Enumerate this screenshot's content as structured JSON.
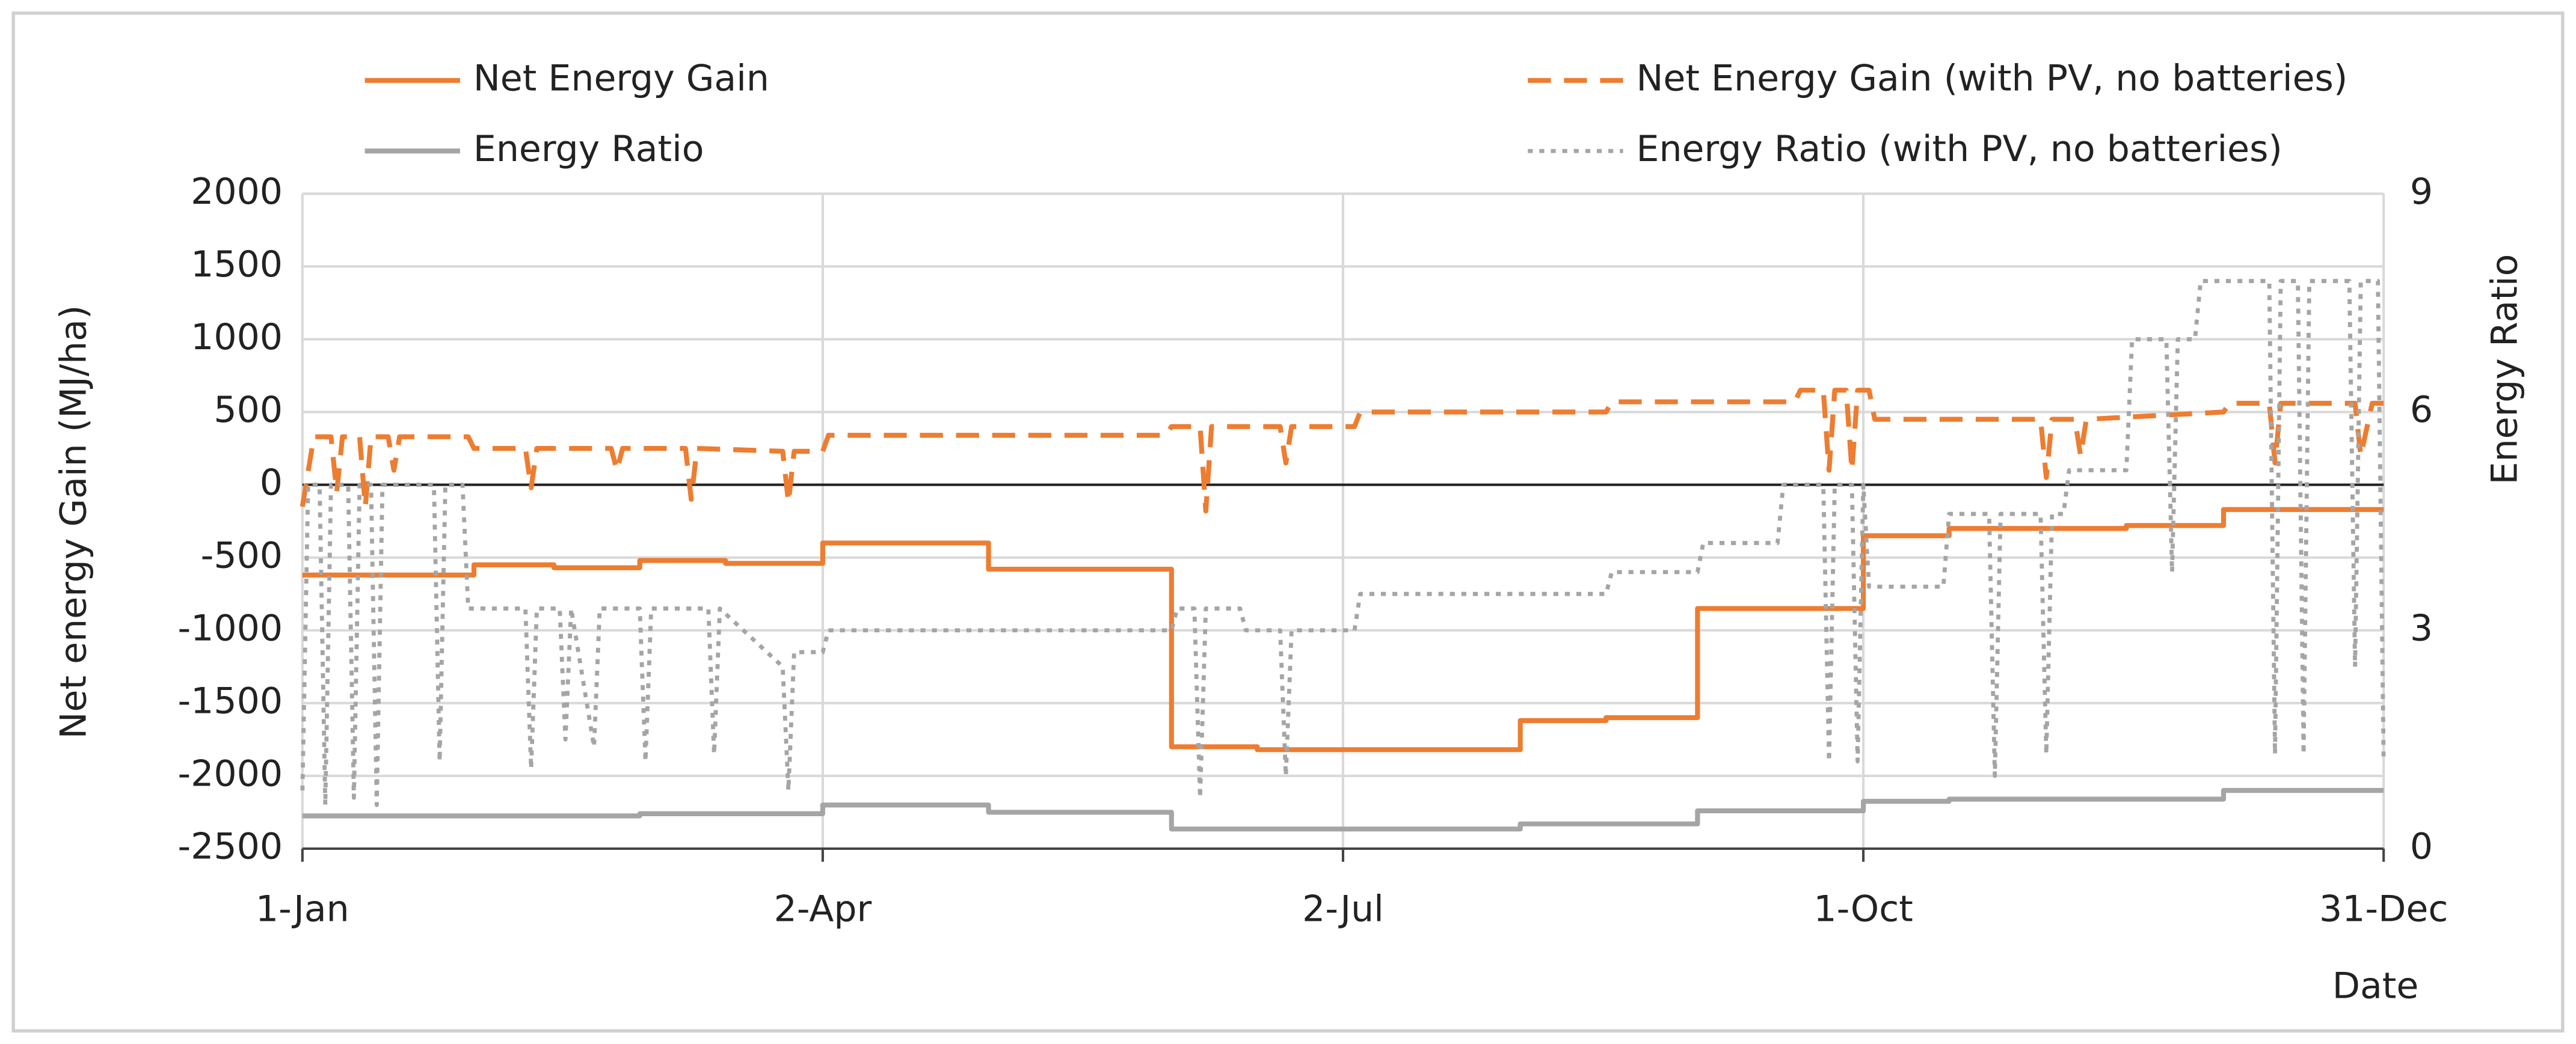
{
  "chart_data": {
    "type": "line",
    "y_label": "Net energy Gain (MJ/ha)",
    "y2_label": "Energy Ratio",
    "x_label": "Date",
    "xlim": [
      1,
      365
    ],
    "xticks": [
      {
        "value": 1,
        "label": "1-Jan"
      },
      {
        "value": 92,
        "label": "2-Apr"
      },
      {
        "value": 183,
        "label": "2-Jul"
      },
      {
        "value": 274,
        "label": "1-Oct"
      },
      {
        "value": 365,
        "label": "31-Dec"
      }
    ],
    "ylim": [
      -2500,
      2000
    ],
    "yticks": [
      -2500,
      -2000,
      -1500,
      -1000,
      -500,
      0,
      500,
      1000,
      1500,
      2000
    ],
    "y2lim": [
      0,
      9
    ],
    "y2ticks": [
      0,
      3,
      6,
      9
    ],
    "grid": true,
    "legend": "top",
    "series": [
      {
        "name": "Net Energy Gain",
        "color": "#ed7d31",
        "dash": "solid",
        "axis": "y",
        "x": [
          1,
          31,
          31,
          45,
          45,
          60,
          60,
          75,
          75,
          92,
          92,
          121,
          121,
          153,
          153,
          168,
          168,
          214,
          214,
          229,
          229,
          245,
          245,
          274,
          274,
          289,
          289,
          320,
          320,
          337,
          337,
          365
        ],
        "values": [
          -620,
          -620,
          -550,
          -550,
          -570,
          -570,
          -520,
          -520,
          -540,
          -540,
          -400,
          -400,
          -580,
          -580,
          -1800,
          -1800,
          -1820,
          -1820,
          -1620,
          -1620,
          -1600,
          -1600,
          -850,
          -850,
          -350,
          -350,
          -300,
          -300,
          -280,
          -280,
          -170,
          -170
        ]
      },
      {
        "name": "Net Energy Gain (with PV, no batteries)",
        "color": "#ed7d31",
        "dash": "dashed",
        "axis": "y",
        "x": [
          1,
          3,
          6,
          7,
          8,
          11,
          12,
          13,
          16,
          17,
          18,
          30,
          31,
          40,
          41,
          42,
          55,
          56,
          57,
          68,
          69,
          70,
          85,
          86,
          87,
          92,
          93,
          152,
          153,
          158,
          159,
          160,
          172,
          173,
          174,
          185,
          186,
          229,
          230,
          262,
          263,
          267,
          268,
          269,
          271,
          272,
          273,
          275,
          276,
          305,
          306,
          307,
          311,
          312,
          313,
          337,
          338,
          345,
          346,
          347,
          360,
          361,
          363,
          365
        ],
        "values": [
          -150,
          330,
          330,
          -50,
          330,
          330,
          -150,
          330,
          330,
          100,
          330,
          330,
          250,
          250,
          -20,
          250,
          250,
          100,
          250,
          250,
          -100,
          250,
          230,
          -120,
          230,
          230,
          340,
          340,
          400,
          400,
          -180,
          400,
          400,
          150,
          400,
          400,
          500,
          500,
          570,
          570,
          650,
          650,
          100,
          650,
          650,
          100,
          650,
          650,
          450,
          450,
          50,
          450,
          450,
          200,
          450,
          500,
          560,
          560,
          150,
          560,
          560,
          200,
          560,
          560
        ]
      },
      {
        "name": "Energy Ratio",
        "color": "#a5a5a5",
        "dash": "solid",
        "axis": "y2",
        "x": [
          1,
          60,
          60,
          92,
          92,
          121,
          121,
          153,
          153,
          214,
          214,
          245,
          245,
          274,
          274,
          289,
          289,
          337,
          337,
          365
        ],
        "values": [
          0.45,
          0.45,
          0.48,
          0.48,
          0.6,
          0.6,
          0.5,
          0.5,
          0.27,
          0.27,
          0.34,
          0.34,
          0.52,
          0.52,
          0.65,
          0.65,
          0.68,
          0.68,
          0.8,
          0.8
        ]
      },
      {
        "name": "Energy Ratio (with PV, no batteries)",
        "color": "#a5a5a5",
        "dash": "dotted",
        "axis": "y2",
        "x": [
          1,
          2,
          4,
          5,
          6,
          9,
          10,
          11,
          13,
          14,
          15,
          24,
          25,
          26,
          29,
          30,
          40,
          41,
          42,
          46,
          47,
          48,
          52,
          53,
          60,
          61,
          62,
          72,
          73,
          74,
          85,
          86,
          87,
          92,
          93,
          153,
          154,
          157,
          158,
          159,
          165,
          166,
          172,
          173,
          174,
          185,
          186,
          229,
          230,
          245,
          246,
          259,
          260,
          267,
          268,
          269,
          272,
          273,
          274,
          275,
          288,
          289,
          296,
          297,
          298,
          305,
          306,
          307,
          309,
          310,
          320,
          321,
          327,
          328,
          329,
          332,
          333,
          345,
          346,
          347,
          350,
          351,
          352,
          359,
          360,
          361,
          364,
          365
        ],
        "values": [
          0.8,
          5,
          5,
          0.6,
          5,
          5,
          0.7,
          5,
          5,
          0.6,
          5,
          5,
          1.2,
          5,
          5,
          3.3,
          3.3,
          1.1,
          3.3,
          3.3,
          1.5,
          3.3,
          1.4,
          3.3,
          3.3,
          1.2,
          3.3,
          3.3,
          1.3,
          3.3,
          2.5,
          0.8,
          2.7,
          2.7,
          3,
          3,
          3.3,
          3.3,
          0.7,
          3.3,
          3.3,
          3,
          3,
          1,
          3,
          3,
          3.5,
          3.5,
          3.8,
          3.8,
          4.2,
          4.2,
          5,
          5,
          1.2,
          5,
          5,
          1.2,
          5,
          3.6,
          3.6,
          4.6,
          4.6,
          1,
          4.6,
          4.6,
          1.3,
          4.6,
          4.6,
          5.2,
          5.2,
          7,
          7,
          3.8,
          7,
          7,
          7.8,
          7.8,
          1.3,
          7.8,
          7.8,
          1.3,
          7.8,
          7.8,
          2.5,
          7.8,
          7.8,
          1.2
        ]
      }
    ]
  }
}
